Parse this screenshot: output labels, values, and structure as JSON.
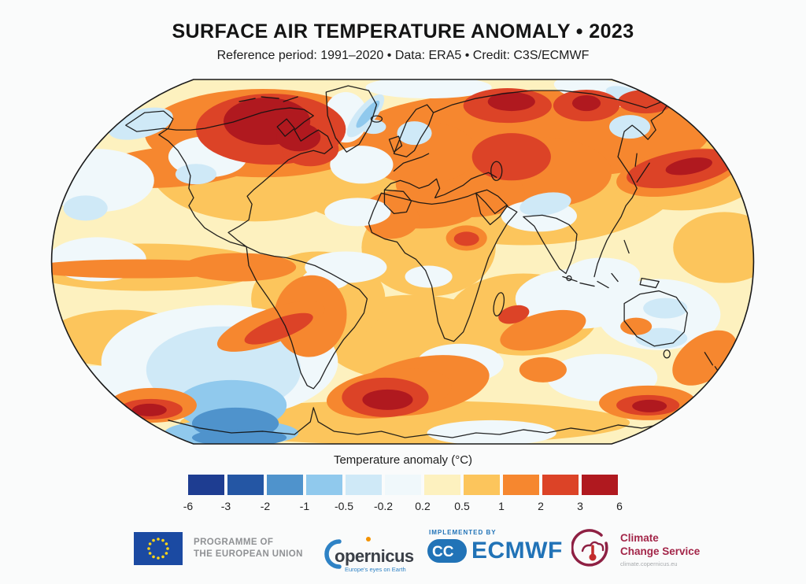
{
  "header": {
    "title": "SURFACE AIR TEMPERATURE ANOMALY • 2023",
    "subtitle": "Reference period: 1991–2020 • Data: ERA5 • Credit: C3S/ECMWF"
  },
  "legend": {
    "title": "Temperature anomaly (°C)",
    "colors": [
      "#1e3d91",
      "#2456a4",
      "#4f93cc",
      "#90c9ed",
      "#cfe9f7",
      "#f0f8fb",
      "#fdf1bf",
      "#fcc55c",
      "#f6872f",
      "#dc4327",
      "#b0191f"
    ],
    "ticks": [
      "-6",
      "-3",
      "-2",
      "-1",
      "-0.5",
      "-0.2",
      "0.2",
      "0.5",
      "1",
      "2",
      "3",
      "6"
    ]
  },
  "map": {
    "base_level": "p05",
    "outline_color": "#1a1a1a",
    "coastline_color": "#121212",
    "palette": {
      "p6": "#b0191f",
      "p3": "#dc4327",
      "p2": "#f6872f",
      "p1": "#fcc55c",
      "p05": "#fdf1bf",
      "p0": "#f0f8fb",
      "m05": "#cfe9f7",
      "m1": "#90c9ed",
      "m2": "#4f93cc"
    },
    "features_format": [
      "name",
      "level",
      "cx",
      "cy",
      "rx",
      "ry",
      "rot"
    ],
    "features": [
      [
        "north-atlantic-warm",
        "p1",
        400,
        130,
        95,
        52,
        0
      ],
      [
        "eurasia-warm-band",
        "p1",
        600,
        120,
        205,
        92,
        0
      ],
      [
        "north-america-warm-band",
        "p1",
        260,
        110,
        135,
        72,
        0
      ],
      [
        "equatorial-pacific-warm",
        "p1",
        120,
        240,
        155,
        30,
        0
      ],
      [
        "south-atlantic-warm",
        "p1",
        460,
        330,
        115,
        55,
        0
      ],
      [
        "west-indian-ocean-warm",
        "p1",
        600,
        300,
        95,
        52,
        0
      ],
      [
        "south-pacific-left-warm",
        "p1",
        90,
        330,
        95,
        36,
        0
      ],
      [
        "brazil-warm",
        "p1",
        340,
        280,
        85,
        60,
        0
      ],
      [
        "africa-warm",
        "p1",
        480,
        215,
        85,
        62,
        0
      ],
      [
        "antarctic-warm-band",
        "p1",
        450,
        437,
        285,
        28,
        0
      ],
      [
        "northwest-pacific-warm",
        "p1",
        800,
        120,
        100,
        48,
        0
      ],
      [
        "east-pacific-warm",
        "p1",
        855,
        215,
        65,
        45,
        0
      ],
      [
        "australia-interior-warm",
        "p1",
        762,
        302,
        32,
        18,
        0
      ],
      [
        "canada-hot",
        "p2",
        270,
        70,
        150,
        56,
        0
      ],
      [
        "north-eurasia-hot",
        "p2",
        610,
        72,
        225,
        56,
        0
      ],
      [
        "central-asia-hot",
        "p2",
        620,
        120,
        92,
        45,
        0
      ],
      [
        "mediterranean-mideast-hot",
        "p2",
        520,
        140,
        82,
        36,
        5
      ],
      [
        "europe-hot",
        "p2",
        470,
        95,
        72,
        40,
        0
      ],
      [
        "japan-pacific-hot",
        "p2",
        795,
        120,
        78,
        28,
        -10
      ],
      [
        "north-pacific-hot-band",
        "p2",
        160,
        112,
        112,
        26,
        -5
      ],
      [
        "sahel-hot",
        "p2",
        470,
        165,
        72,
        26,
        0
      ],
      [
        "west-sahara-hot",
        "p2",
        432,
        178,
        36,
        26,
        0
      ],
      [
        "sudan-hot",
        "p2",
        528,
        203,
        26,
        16,
        0
      ],
      [
        "north-pacific-neutral",
        "p0",
        60,
        130,
        72,
        40,
        0
      ],
      [
        "northeast-pacific-neutral",
        "p0",
        60,
        230,
        62,
        28,
        0
      ],
      [
        "north-america-interior-neutral",
        "p0",
        200,
        100,
        50,
        26,
        0
      ],
      [
        "northwest-atlantic-neutral",
        "p0",
        395,
        110,
        40,
        24,
        0
      ],
      [
        "south-pacific-neutral",
        "p0",
        215,
        360,
        150,
        72,
        0
      ],
      [
        "south-indian-neutral",
        "p0",
        670,
        280,
        80,
        38,
        0
      ],
      [
        "indian-south-neutral",
        "p0",
        700,
        380,
        70,
        30,
        0
      ],
      [
        "south-of-africa-neutral",
        "p0",
        520,
        362,
        55,
        25,
        0
      ],
      [
        "australia-ocean-neutral",
        "p0",
        772,
        300,
        78,
        45,
        0
      ],
      [
        "greenland-interior-neutral",
        "p0",
        375,
        50,
        28,
        32,
        0
      ],
      [
        "mid-atlantic-neutral",
        "p0",
        390,
        170,
        42,
        18,
        0
      ],
      [
        "equatorial-atlantic-neutral",
        "p0",
        375,
        240,
        52,
        20,
        0
      ],
      [
        "arctic-central-neutral",
        "p0",
        480,
        12,
        80,
        14,
        0
      ],
      [
        "arctic-east-neutral",
        "p0",
        700,
        18,
        62,
        16,
        10
      ],
      [
        "southeast-asia-neutral",
        "p0",
        700,
        250,
        48,
        22,
        0
      ],
      [
        "antarctic-southeast-neutral",
        "p0",
        860,
        420,
        62,
        25,
        0
      ],
      [
        "antarctic-middle-neutral",
        "p0",
        560,
        450,
        82,
        16,
        0
      ],
      [
        "tibet-area-neutral",
        "p0",
        620,
        175,
        48,
        20,
        0
      ],
      [
        "equatorial-africa-neutral",
        "p0",
        480,
        252,
        30,
        14,
        0
      ],
      [
        "south-america-interior-neutral",
        "p0",
        350,
        255,
        30,
        14,
        0
      ],
      [
        "southwest-pacific-neutral",
        "p0",
        60,
        390,
        52,
        25,
        0
      ],
      [
        "bering-alaska-cool",
        "m05",
        115,
        58,
        42,
        18,
        -15
      ],
      [
        "east-greenland-cool",
        "m05",
        400,
        48,
        12,
        34,
        40
      ],
      [
        "iceland-cool",
        "m05",
        410,
        62,
        16,
        9,
        0
      ],
      [
        "scandinavia-cool",
        "m05",
        462,
        70,
        22,
        15,
        0
      ],
      [
        "south-pacific-cool",
        "m05",
        220,
        370,
        98,
        55,
        0
      ],
      [
        "western-us-cool",
        "m05",
        185,
        122,
        26,
        13,
        0
      ],
      [
        "tibet-cool",
        "m05",
        628,
        160,
        33,
        14,
        -10
      ],
      [
        "sea-of-okhotsk-cool",
        "m05",
        735,
        62,
        26,
        15,
        0
      ],
      [
        "antarctic-coast-sE-cool",
        "m05",
        855,
        432,
        55,
        18,
        0
      ],
      [
        "australian-bight-cool",
        "m05",
        775,
        330,
        33,
        13,
        0
      ],
      [
        "northeast-australia-cool",
        "m05",
        780,
        292,
        28,
        13,
        0
      ],
      [
        "arctic-northeast-cool",
        "m05",
        730,
        22,
        26,
        10,
        15
      ],
      [
        "northeast-pacific-cool-spot",
        "m05",
        45,
        165,
        28,
        16,
        0
      ],
      [
        "antarctic-coast-sw-cool",
        "m05",
        62,
        430,
        45,
        16,
        0
      ],
      [
        "south-pacific-cold",
        "m1",
        230,
        415,
        70,
        32,
        0
      ],
      [
        "antarctic-coast-left-cold",
        "m1",
        230,
        450,
        85,
        17,
        0
      ],
      [
        "east-greenland-cold",
        "m1",
        403,
        46,
        6,
        22,
        40
      ],
      [
        "south-pacific-coldest",
        "m2",
        235,
        438,
        55,
        20,
        0
      ],
      [
        "antarctic-coast-left-coldest",
        "m2",
        240,
        456,
        60,
        11,
        0
      ],
      [
        "el-nino-tongue-west",
        "p2",
        110,
        242,
        140,
        12,
        0
      ],
      [
        "el-nino-tongue-east",
        "p2",
        240,
        240,
        72,
        18,
        0
      ],
      [
        "south-america-hot",
        "p2",
        330,
        302,
        46,
        52,
        10
      ],
      [
        "chile-offshore-hot",
        "p2",
        280,
        315,
        72,
        22,
        -20
      ],
      [
        "south-atlantic-hot-band",
        "p2",
        470,
        390,
        88,
        36,
        -10
      ],
      [
        "southwest-indian-hot",
        "p2",
        625,
        320,
        56,
        22,
        -15
      ],
      [
        "south-indian-hot-spot",
        "p2",
        625,
        370,
        30,
        16,
        0
      ],
      [
        "weddell-hot-band",
        "p2",
        430,
        400,
        80,
        30,
        -8
      ],
      [
        "antarctic-left-hot",
        "p2",
        130,
        415,
        56,
        22,
        0
      ],
      [
        "new-zealand-area-hot",
        "p2",
        830,
        355,
        46,
        28,
        -35
      ],
      [
        "ross-area-hot",
        "p2",
        758,
        412,
        62,
        22,
        0
      ],
      [
        "west-australia-hot-spot",
        "p2",
        743,
        315,
        20,
        11,
        0
      ],
      [
        "canada-very-hot",
        "p3",
        280,
        65,
        95,
        45,
        0
      ],
      [
        "quebec-very-hot",
        "p3",
        330,
        90,
        36,
        22,
        0
      ],
      [
        "west-russia-very-hot",
        "p3",
        580,
        35,
        56,
        22,
        0
      ],
      [
        "kazakhstan-very-hot",
        "p3",
        585,
        100,
        50,
        30,
        0
      ],
      [
        "siberia-very-hot",
        "p3",
        680,
        35,
        42,
        20,
        0
      ],
      [
        "chukotka-very-hot",
        "p3",
        755,
        30,
        35,
        15,
        0
      ],
      [
        "northwest-pacific-very-hot",
        "p3",
        800,
        115,
        70,
        22,
        -10
      ],
      [
        "argentina-offshore-very-hot",
        "p3",
        290,
        318,
        46,
        13,
        -20
      ],
      [
        "weddell-very-hot",
        "p3",
        425,
        405,
        55,
        25,
        0
      ],
      [
        "antarctic-peninsula-w-very-hot",
        "p3",
        128,
        420,
        40,
        13,
        0
      ],
      [
        "ross-very-hot",
        "p3",
        758,
        415,
        40,
        13,
        0
      ],
      [
        "madagascar-channel-very-hot",
        "p3",
        588,
        300,
        20,
        11,
        -15
      ],
      [
        "sudan-very-hot",
        "p3",
        528,
        204,
        16,
        9,
        0
      ],
      [
        "hudson-bay-extreme",
        "p6",
        275,
        55,
        55,
        30,
        0
      ],
      [
        "labrador-extreme",
        "p6",
        315,
        75,
        28,
        18,
        0
      ],
      [
        "west-russia-extreme",
        "p6",
        585,
        30,
        30,
        12,
        0
      ],
      [
        "siberia-extreme",
        "p6",
        680,
        32,
        18,
        10,
        0
      ],
      [
        "northwest-pacific-extreme",
        "p6",
        810,
        112,
        30,
        10,
        -10
      ],
      [
        "weddell-extreme",
        "p6",
        428,
        408,
        32,
        13,
        0
      ],
      [
        "antarctic-peninsula-w-extreme",
        "p6",
        126,
        421,
        22,
        8,
        0
      ],
      [
        "ross-extreme",
        "p6",
        760,
        416,
        22,
        8,
        0
      ]
    ]
  },
  "footer": {
    "eu": {
      "line1": "PROGRAMME OF",
      "line2": "THE EUROPEAN UNION"
    },
    "copernicus": {
      "name": "Copernicus",
      "wordmark_rest": "opernicus",
      "tagline": "Europe's eyes on Earth"
    },
    "ecmwf": {
      "implemented_by": "IMPLEMENTED BY",
      "name": "ECMWF"
    },
    "c3s": {
      "line1": "Climate",
      "line2": "Change Service",
      "url": "climate.copernicus.eu"
    }
  }
}
